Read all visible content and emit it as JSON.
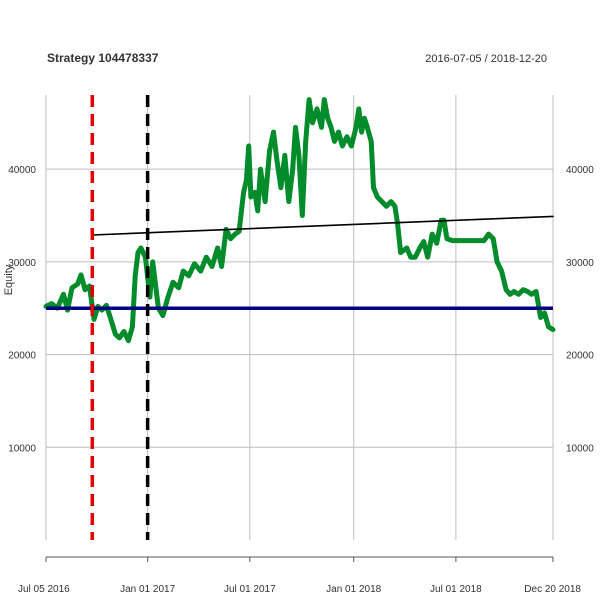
{
  "chart_data": {
    "type": "line",
    "title": "Strategy 104478337",
    "date_range": "2016-07-05 / 2018-12-20",
    "xlabel": "",
    "ylabel": "Equity",
    "xlim": [
      "2016-07-05",
      "2018-12-20"
    ],
    "ylim": [
      0,
      48000
    ],
    "grid": true,
    "x_ticks": [
      {
        "date": "2016-07-05",
        "label": "Jul 05 2016"
      },
      {
        "date": "2017-01-01",
        "label": "Jan 01 2017"
      },
      {
        "date": "2017-07-01",
        "label": "Jul 01 2017"
      },
      {
        "date": "2018-01-01",
        "label": "Jan 01 2018"
      },
      {
        "date": "2018-07-01",
        "label": "Jul 01 2018"
      },
      {
        "date": "2018-12-20",
        "label": "Dec 20 2018"
      }
    ],
    "y_ticks": [
      10000,
      20000,
      30000,
      40000
    ],
    "series": [
      {
        "color": "#008c2a",
        "points": [
          [
            "2016-07-05",
            25200
          ],
          [
            "2016-07-15",
            25500
          ],
          [
            "2016-07-25",
            25000
          ],
          [
            "2016-08-05",
            26500
          ],
          [
            "2016-08-12",
            24800
          ],
          [
            "2016-08-20",
            27200
          ],
          [
            "2016-08-30",
            27600
          ],
          [
            "2016-09-05",
            28600
          ],
          [
            "2016-09-12",
            27000
          ],
          [
            "2016-09-20",
            27400
          ],
          [
            "2016-09-28",
            23800
          ],
          [
            "2016-10-05",
            25200
          ],
          [
            "2016-10-12",
            24800
          ],
          [
            "2016-10-20",
            25300
          ],
          [
            "2016-10-28",
            23800
          ],
          [
            "2016-11-05",
            22200
          ],
          [
            "2016-11-12",
            21800
          ],
          [
            "2016-11-20",
            22500
          ],
          [
            "2016-11-28",
            21500
          ],
          [
            "2016-12-05",
            23000
          ],
          [
            "2016-12-10",
            28500
          ],
          [
            "2016-12-15",
            31000
          ],
          [
            "2016-12-20",
            31500
          ],
          [
            "2016-12-28",
            30500
          ],
          [
            "2017-01-05",
            26200
          ],
          [
            "2017-01-10",
            30000
          ],
          [
            "2017-01-20",
            25000
          ],
          [
            "2017-01-28",
            24200
          ],
          [
            "2017-02-05",
            26000
          ],
          [
            "2017-02-15",
            27800
          ],
          [
            "2017-02-25",
            27200
          ],
          [
            "2017-03-05",
            29000
          ],
          [
            "2017-03-15",
            28500
          ],
          [
            "2017-03-25",
            29800
          ],
          [
            "2017-04-05",
            29000
          ],
          [
            "2017-04-15",
            30500
          ],
          [
            "2017-04-25",
            29500
          ],
          [
            "2017-05-05",
            31500
          ],
          [
            "2017-05-12",
            29500
          ],
          [
            "2017-05-20",
            33500
          ],
          [
            "2017-05-28",
            32500
          ],
          [
            "2017-06-05",
            33000
          ],
          [
            "2017-06-12",
            33300
          ],
          [
            "2017-06-20",
            37500
          ],
          [
            "2017-06-25",
            38800
          ],
          [
            "2017-06-29",
            42500
          ],
          [
            "2017-07-03",
            37000
          ],
          [
            "2017-07-10",
            37500
          ],
          [
            "2017-07-15",
            35500
          ],
          [
            "2017-07-20",
            40000
          ],
          [
            "2017-07-28",
            36500
          ],
          [
            "2017-08-05",
            42000
          ],
          [
            "2017-08-12",
            44000
          ],
          [
            "2017-08-18",
            41000
          ],
          [
            "2017-08-25",
            38000
          ],
          [
            "2017-09-01",
            41500
          ],
          [
            "2017-09-08",
            36500
          ],
          [
            "2017-09-15",
            40000
          ],
          [
            "2017-09-20",
            44500
          ],
          [
            "2017-09-26",
            41500
          ],
          [
            "2017-10-02",
            35000
          ],
          [
            "2017-10-08",
            43000
          ],
          [
            "2017-10-14",
            47500
          ],
          [
            "2017-10-20",
            45000
          ],
          [
            "2017-10-28",
            46500
          ],
          [
            "2017-11-05",
            44500
          ],
          [
            "2017-11-10",
            47500
          ],
          [
            "2017-11-16",
            45500
          ],
          [
            "2017-11-22",
            44500
          ],
          [
            "2017-11-28",
            43000
          ],
          [
            "2017-12-05",
            44000
          ],
          [
            "2017-12-12",
            42500
          ],
          [
            "2017-12-20",
            43500
          ],
          [
            "2017-12-28",
            42500
          ],
          [
            "2018-01-05",
            44500
          ],
          [
            "2018-01-10",
            46500
          ],
          [
            "2018-01-15",
            44000
          ],
          [
            "2018-01-20",
            45500
          ],
          [
            "2018-01-25",
            44500
          ],
          [
            "2018-02-01",
            43000
          ],
          [
            "2018-02-05",
            38000
          ],
          [
            "2018-02-12",
            37000
          ],
          [
            "2018-02-20",
            36500
          ],
          [
            "2018-02-28",
            36000
          ],
          [
            "2018-03-08",
            36500
          ],
          [
            "2018-03-15",
            36000
          ],
          [
            "2018-03-20",
            34000
          ],
          [
            "2018-03-25",
            31000
          ],
          [
            "2018-04-05",
            31500
          ],
          [
            "2018-04-12",
            30500
          ],
          [
            "2018-04-20",
            30500
          ],
          [
            "2018-04-28",
            31500
          ],
          [
            "2018-05-05",
            32200
          ],
          [
            "2018-05-12",
            30500
          ],
          [
            "2018-05-20",
            33000
          ],
          [
            "2018-05-28",
            32000
          ],
          [
            "2018-06-05",
            34500
          ],
          [
            "2018-06-10",
            34500
          ],
          [
            "2018-06-15",
            32500
          ],
          [
            "2018-06-25",
            32300
          ],
          [
            "2018-07-15",
            32300
          ],
          [
            "2018-08-05",
            32300
          ],
          [
            "2018-08-20",
            32300
          ],
          [
            "2018-08-28",
            33000
          ],
          [
            "2018-09-05",
            32500
          ],
          [
            "2018-09-12",
            30000
          ],
          [
            "2018-09-20",
            29000
          ],
          [
            "2018-09-28",
            27000
          ],
          [
            "2018-10-05",
            26500
          ],
          [
            "2018-10-12",
            26800
          ],
          [
            "2018-10-20",
            26500
          ],
          [
            "2018-10-28",
            27000
          ],
          [
            "2018-11-05",
            26800
          ],
          [
            "2018-11-12",
            26500
          ],
          [
            "2018-11-20",
            26800
          ],
          [
            "2018-11-28",
            24000
          ],
          [
            "2018-12-05",
            24500
          ],
          [
            "2018-12-12",
            23000
          ],
          [
            "2018-12-20",
            22700
          ]
        ]
      },
      {
        "color": "#000000",
        "points": [
          [
            "2016-09-25",
            32900
          ],
          [
            "2018-12-20",
            34900
          ]
        ]
      }
    ],
    "hlines": [
      {
        "y": 25000,
        "color": "#000080"
      }
    ],
    "vlines": [
      {
        "date": "2016-09-25",
        "color": "#e00000",
        "style": "dashed"
      },
      {
        "date": "2017-01-01",
        "color": "#000000",
        "style": "dashed"
      }
    ]
  }
}
